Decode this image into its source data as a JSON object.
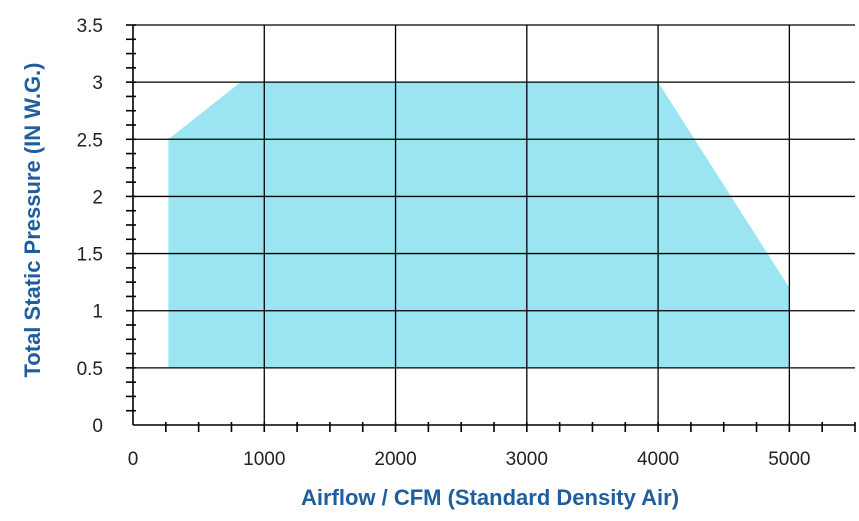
{
  "chart_data": {
    "type": "area",
    "title": "",
    "xlabel": "Airflow / CFM  (Standard Density Air)",
    "ylabel": "Total Static Pressure (IN W.G.)",
    "xlim": [
      0,
      5500
    ],
    "ylim": [
      0,
      3.5
    ],
    "x_ticks": [
      0,
      1000,
      2000,
      3000,
      4000,
      5000
    ],
    "x_tick_labels": [
      "0",
      "1000",
      "2000",
      "3000",
      "4000",
      "5000"
    ],
    "y_ticks": [
      0,
      0.5,
      1,
      1.5,
      2,
      2.5,
      3,
      3.5
    ],
    "y_tick_labels": [
      "0",
      "0.5",
      "1",
      "1.5",
      "2",
      "2.5",
      "3",
      "3.5"
    ],
    "x_minor_step": 250,
    "y_minor_step": 0.125,
    "grid": true,
    "legend": "none",
    "region": {
      "name": "",
      "polygon": [
        [
          270,
          0.5
        ],
        [
          270,
          2.5
        ],
        [
          820,
          3.0
        ],
        [
          4000,
          3.0
        ],
        [
          5000,
          1.2
        ],
        [
          5000,
          0.5
        ]
      ]
    },
    "colors": {
      "fill": "#9be4f2",
      "grid": "#000000",
      "axis_title": "#1f5e9e",
      "tick_text": "#222222"
    }
  }
}
